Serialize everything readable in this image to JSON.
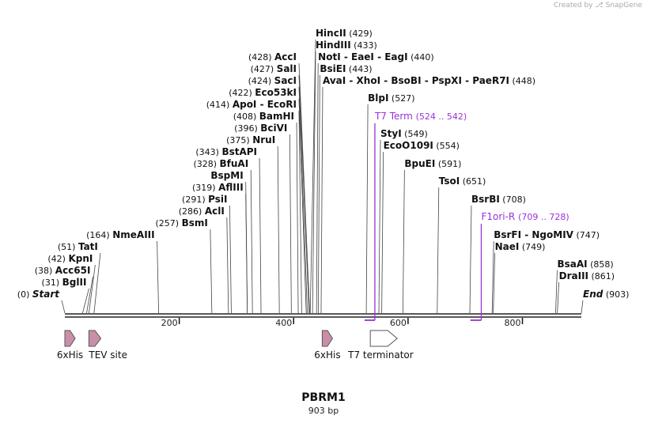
{
  "watermark": "Created by ⎇ SnapGene",
  "plasmid": {
    "name": "PBRM1",
    "size_label": "903 bp",
    "length_bp": 903
  },
  "ticks": [
    {
      "bp": 200,
      "label": "200"
    },
    {
      "bp": 400,
      "label": "400"
    },
    {
      "bp": 600,
      "label": "600"
    },
    {
      "bp": 800,
      "label": "800"
    }
  ],
  "left_sites": [
    {
      "name": "Start",
      "pos": "(0)",
      "bp": 0,
      "italic": true
    },
    {
      "name": "BglII",
      "pos": "(31)",
      "bp": 31
    },
    {
      "name": "Acc65I",
      "pos": "(38)",
      "bp": 38
    },
    {
      "name": "KpnI",
      "pos": "(42)",
      "bp": 42
    },
    {
      "name": "TatI",
      "pos": "(51)",
      "bp": 51
    },
    {
      "name": "NmeAIII",
      "pos": "(164)",
      "bp": 164
    },
    {
      "name": "BsmI",
      "pos": "(257)",
      "bp": 257
    },
    {
      "name": "AclI",
      "pos": "(286)",
      "bp": 286
    },
    {
      "name": "PsiI",
      "pos": "(291)",
      "bp": 291
    },
    {
      "name": "AflIII",
      "pos": "(319)",
      "bp": 319
    },
    {
      "name": "BspMI",
      "pos": "",
      "bp": 319
    },
    {
      "name": "BfuAI",
      "pos": "(328)",
      "bp": 328
    },
    {
      "name": "BstAPI",
      "pos": "(343)",
      "bp": 343
    },
    {
      "name": "NruI",
      "pos": "(375)",
      "bp": 375
    },
    {
      "name": "BciVI",
      "pos": "(396)",
      "bp": 396
    },
    {
      "name": "BamHI",
      "pos": "(408)",
      "bp": 408
    },
    {
      "name": "ApoI  - EcoRI",
      "pos": "(414)",
      "bp": 414
    },
    {
      "name": "Eco53kI",
      "pos": "(422)",
      "bp": 422
    },
    {
      "name": "SacI",
      "pos": "(424)",
      "bp": 424
    },
    {
      "name": "SalI",
      "pos": "(427)",
      "bp": 427
    },
    {
      "name": "AccI",
      "pos": "(428)",
      "bp": 428
    }
  ],
  "right_sites": [
    {
      "name": "HincII",
      "pos": "(429)",
      "bp": 429
    },
    {
      "name": "HindIII",
      "pos": "(433)",
      "bp": 433
    },
    {
      "name": "NotI  - EaeI  - EagI",
      "pos": "(440)",
      "bp": 440
    },
    {
      "name": "BsiEI",
      "pos": "(443)",
      "bp": 443
    },
    {
      "name": "AvaI  - XhoI  - BsoBI  - PspXI  - PaeR7I",
      "pos": "(448)",
      "bp": 448
    },
    {
      "name": "BlpI",
      "pos": "(527)",
      "bp": 527
    },
    {
      "name": "StyI",
      "pos": "(549)",
      "bp": 549
    },
    {
      "name": "EcoO109I",
      "pos": "(554)",
      "bp": 554
    },
    {
      "name": "BpuEI",
      "pos": "(591)",
      "bp": 591
    },
    {
      "name": "TsoI",
      "pos": "(651)",
      "bp": 651
    },
    {
      "name": "BsrBI",
      "pos": "(708)",
      "bp": 708
    },
    {
      "name": "BsrFI  - NgoMIV",
      "pos": "(747)",
      "bp": 747
    },
    {
      "name": "NaeI",
      "pos": "(749)",
      "bp": 749
    },
    {
      "name": "BsaAI",
      "pos": "(858)",
      "bp": 858
    },
    {
      "name": "DraIII",
      "pos": "(861)",
      "bp": 861
    },
    {
      "name": "End",
      "pos": "(903)",
      "bp": 903,
      "italic": true
    }
  ],
  "primers": [
    {
      "name": "T7 Term",
      "range": "(524 .. 542)",
      "start": 524,
      "end": 542,
      "color": "#9b30d9"
    },
    {
      "name": "F1ori-R",
      "range": "(709 .. 728)",
      "start": 709,
      "end": 728,
      "color": "#9b30d9"
    }
  ],
  "features": [
    {
      "name": "6xHis",
      "start": 0,
      "end": 18,
      "color": "#c98fa9",
      "strand": 1
    },
    {
      "name": "TEV site",
      "start": 42,
      "end": 63,
      "color": "#c98fa9",
      "strand": 1
    },
    {
      "name": "6xHis",
      "start": 450,
      "end": 468,
      "color": "#c98fa9",
      "strand": 1
    },
    {
      "name": "T7 terminator",
      "start": 534,
      "end": 581,
      "color": "#ffffff",
      "strand": 1
    }
  ],
  "colors": {
    "backbone": "#222222",
    "site_line": "#444444",
    "feature_outline": "#555555"
  }
}
